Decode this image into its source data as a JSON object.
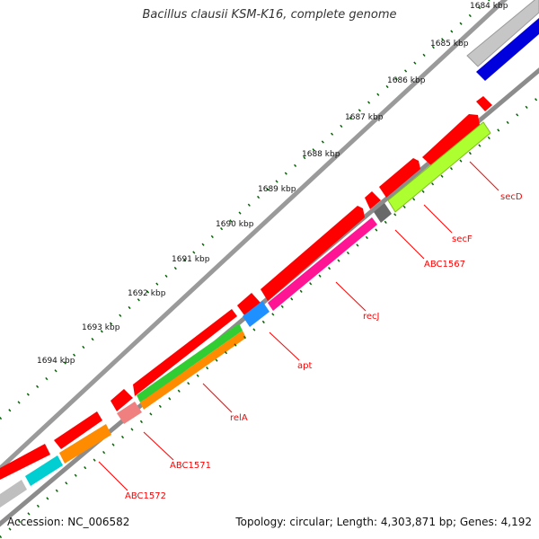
{
  "title": "Bacillus clausii KSM-K16, complete genome",
  "footer": {
    "accession": "Accession: NC_006582",
    "stats": "Topology: circular; Length: 4,303,871 bp; Genes: 4,192"
  },
  "tick_labels": [
    "1684 kbp",
    "1685 kbp",
    "1686 kbp",
    "1687 kbp",
    "1688 kbp",
    "1689 kbp",
    "1690 kbp",
    "1691 kbp",
    "1692 kbp",
    "1693 kbp",
    "1694 kbp"
  ],
  "genes": [
    {
      "name": "secD",
      "color": "#adff2f"
    },
    {
      "name": "secF",
      "color": "#adff2f"
    },
    {
      "name": "ABC1567",
      "color": "#696969"
    },
    {
      "name": "recJ",
      "color": "#ff1493"
    },
    {
      "name": "apt",
      "color": "#1e90ff"
    },
    {
      "name": "relA",
      "color": "#32cd32"
    },
    {
      "name": "ABC1571",
      "color": "#f08080"
    },
    {
      "name": "ABC1572",
      "color": "#ff8c00"
    }
  ],
  "colors": {
    "backbone": "#8c8c8c",
    "cds": "#ff0000",
    "label": "#ff0000",
    "tick": "#006400",
    "blue_feature": "#0000dd",
    "gray_feature": "#bfbfbf",
    "cyan_feature": "#00ced1"
  }
}
